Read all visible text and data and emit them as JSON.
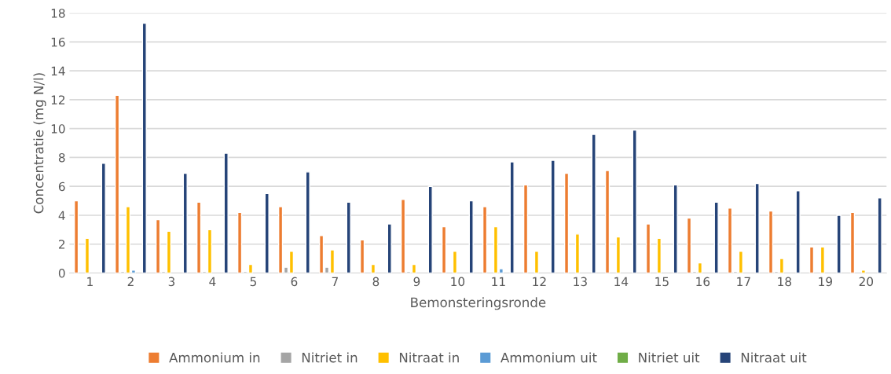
{
  "chart_data": {
    "type": "bar",
    "xlabel": "Bemonsteringsronde",
    "ylabel": "Concentratie (mg N/l)",
    "categories": [
      "1",
      "2",
      "3",
      "4",
      "5",
      "6",
      "7",
      "8",
      "9",
      "10",
      "11",
      "12",
      "13",
      "14",
      "15",
      "16",
      "17",
      "18",
      "19",
      "20"
    ],
    "series": [
      {
        "name": "Ammonium in",
        "color": "#ed7d31",
        "values": [
          5.0,
          12.3,
          3.7,
          4.9,
          4.2,
          4.6,
          2.6,
          2.3,
          5.1,
          3.2,
          4.6,
          6.1,
          6.9,
          7.1,
          3.4,
          3.8,
          4.5,
          4.3,
          1.8,
          4.2
        ]
      },
      {
        "name": "Nitriet in",
        "color": "#a5a5a5",
        "values": [
          null,
          0.1,
          0.1,
          0.1,
          0.1,
          0.4,
          0.4,
          null,
          0.1,
          null,
          null,
          null,
          null,
          null,
          null,
          0.1,
          0.1,
          0.1,
          null,
          null
        ]
      },
      {
        "name": "Nitraat in",
        "color": "#ffc000",
        "values": [
          2.4,
          4.6,
          2.9,
          3.0,
          0.6,
          1.5,
          1.6,
          0.6,
          0.6,
          1.5,
          3.2,
          1.5,
          2.7,
          2.5,
          2.4,
          0.7,
          1.5,
          1.0,
          1.8,
          0.2
        ]
      },
      {
        "name": "Ammonium uit",
        "color": "#5b9bd5",
        "values": [
          null,
          0.2,
          null,
          null,
          null,
          null,
          null,
          null,
          null,
          null,
          0.3,
          null,
          null,
          null,
          null,
          null,
          null,
          null,
          null,
          null
        ]
      },
      {
        "name": "Nitriet uit",
        "color": "#70ad47",
        "values": [
          null,
          null,
          null,
          null,
          null,
          null,
          null,
          null,
          null,
          null,
          null,
          null,
          null,
          null,
          null,
          null,
          null,
          null,
          null,
          null
        ]
      },
      {
        "name": "Nitraat uit",
        "color": "#264478",
        "values": [
          7.6,
          17.3,
          6.9,
          8.3,
          5.5,
          7.0,
          4.9,
          3.4,
          6.0,
          5.0,
          7.7,
          7.8,
          9.6,
          9.9,
          6.1,
          4.9,
          6.2,
          5.7,
          4.0,
          5.2
        ]
      }
    ],
    "ylim": [
      0,
      18
    ],
    "yticks": [
      0,
      2,
      4,
      6,
      8,
      10,
      12,
      14,
      16,
      18
    ],
    "grid": "y",
    "legend": "bottom"
  }
}
